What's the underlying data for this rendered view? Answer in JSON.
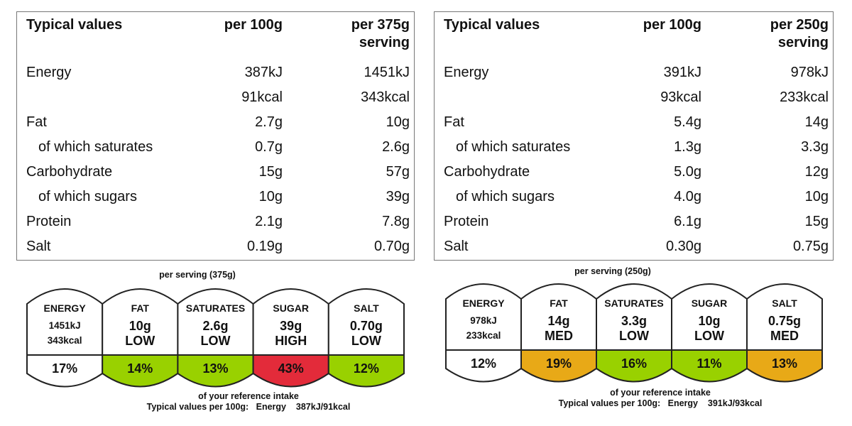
{
  "left": {
    "table": {
      "header": {
        "label": "Typical values",
        "col1": "per 100g",
        "col2_line1": "per 375g",
        "col2_line2": "serving"
      },
      "rows": [
        {
          "label": "Energy",
          "per100": "387kJ",
          "serving": "1451kJ",
          "indent": false
        },
        {
          "label": "",
          "per100": "91kcal",
          "serving": "343kcal",
          "indent": false
        },
        {
          "label": "Fat",
          "per100": "2.7g",
          "serving": "10g",
          "indent": false
        },
        {
          "label": "of which saturates",
          "per100": "0.7g",
          "serving": "2.6g",
          "indent": true
        },
        {
          "label": "Carbohydrate",
          "per100": "15g",
          "serving": "57g",
          "indent": false
        },
        {
          "label": "of which sugars",
          "per100": "10g",
          "serving": "39g",
          "indent": true
        },
        {
          "label": "Protein",
          "per100": "2.1g",
          "serving": "7.8g",
          "indent": false
        },
        {
          "label": "Salt",
          "per100": "0.19g",
          "serving": "0.70g",
          "indent": false
        }
      ]
    },
    "label": {
      "caption": "per serving  (375g)",
      "badges": [
        {
          "name": "ENERGY",
          "line1": "1451kJ",
          "line2": "343kcal",
          "percent": "17%",
          "level": "none",
          "color": "#ffffff"
        },
        {
          "name": "FAT",
          "line1": "10g",
          "line2": "LOW",
          "percent": "14%",
          "level": "low",
          "color": "#99d100"
        },
        {
          "name": "SATURATES",
          "line1": "2.6g",
          "line2": "LOW",
          "percent": "13%",
          "level": "low",
          "color": "#99d100"
        },
        {
          "name": "SUGAR",
          "line1": "39g",
          "line2": "HIGH",
          "percent": "43%",
          "level": "high",
          "color": "#e32b3a"
        },
        {
          "name": "SALT",
          "line1": "0.70g",
          "line2": "LOW",
          "percent": "12%",
          "level": "low",
          "color": "#99d100"
        }
      ],
      "footer_line1": "of your reference intake",
      "footer_line2": "Typical values per 100g:   Energy    387kJ/91kcal"
    }
  },
  "right": {
    "table": {
      "header": {
        "label": "Typical values",
        "col1": "per 100g",
        "col2_line1": "per 250g",
        "col2_line2": "serving"
      },
      "rows": [
        {
          "label": "Energy",
          "per100": "391kJ",
          "serving": "978kJ",
          "indent": false
        },
        {
          "label": "",
          "per100": "93kcal",
          "serving": "233kcal",
          "indent": false
        },
        {
          "label": "Fat",
          "per100": "5.4g",
          "serving": "14g",
          "indent": false
        },
        {
          "label": "of which saturates",
          "per100": "1.3g",
          "serving": "3.3g",
          "indent": true
        },
        {
          "label": "Carbohydrate",
          "per100": "5.0g",
          "serving": "12g",
          "indent": false
        },
        {
          "label": "of which sugars",
          "per100": "4.0g",
          "serving": "10g",
          "indent": true
        },
        {
          "label": "Protein",
          "per100": "6.1g",
          "serving": "15g",
          "indent": false
        },
        {
          "label": "Salt",
          "per100": "0.30g",
          "serving": "0.75g",
          "indent": false
        }
      ]
    },
    "label": {
      "caption": "per serving  (250g)",
      "badges": [
        {
          "name": "ENERGY",
          "line1": "978kJ",
          "line2": "233kcal",
          "percent": "12%",
          "level": "none",
          "color": "#ffffff"
        },
        {
          "name": "FAT",
          "line1": "14g",
          "line2": "MED",
          "percent": "19%",
          "level": "medium",
          "color": "#e8a917"
        },
        {
          "name": "SATURATES",
          "line1": "3.3g",
          "line2": "LOW",
          "percent": "16%",
          "level": "low",
          "color": "#99d100"
        },
        {
          "name": "SUGAR",
          "line1": "10g",
          "line2": "LOW",
          "percent": "11%",
          "level": "low",
          "color": "#99d100"
        },
        {
          "name": "SALT",
          "line1": "0.75g",
          "line2": "MED",
          "percent": "13%",
          "level": "medium",
          "color": "#e8a917"
        }
      ],
      "footer_line1": "of your reference intake",
      "footer_line2": "Typical values per 100g:   Energy    391kJ/93kcal"
    }
  }
}
